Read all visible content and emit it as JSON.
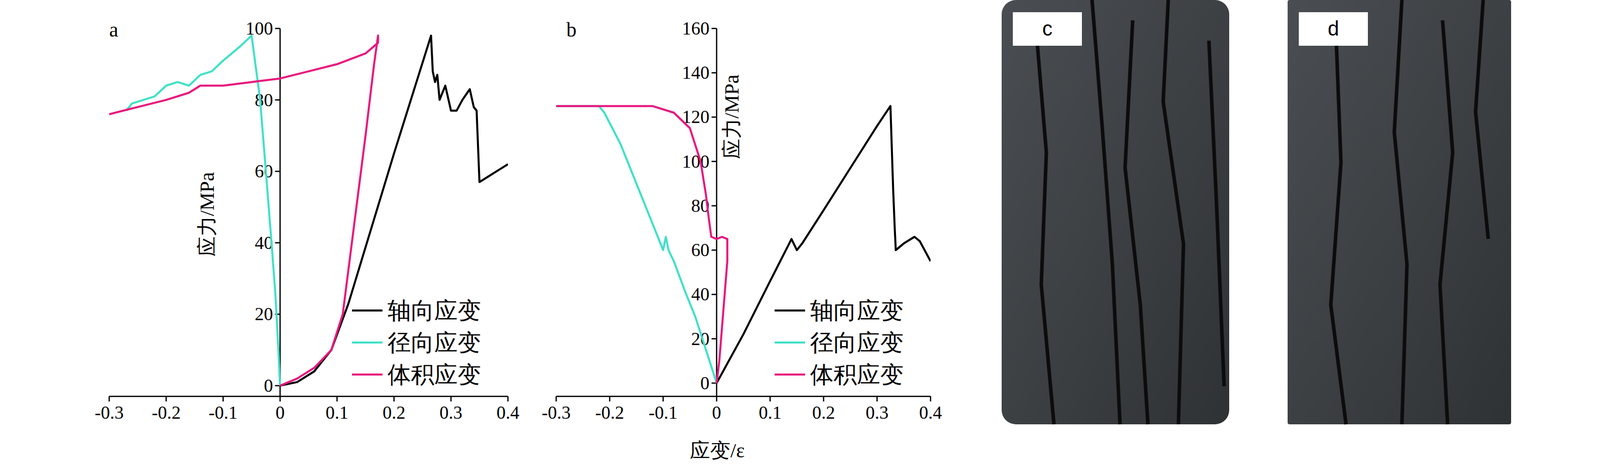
{
  "chart_data": [
    {
      "type": "line",
      "title": "a",
      "y_label": "应力/MPa",
      "xlim": [
        -0.3,
        0.4
      ],
      "xticks": [
        -0.3,
        -0.2,
        -0.1,
        0,
        0.1,
        0.2,
        0.3,
        0.4
      ],
      "ylim": [
        -3,
        100
      ],
      "yticks": [
        0,
        20,
        40,
        60,
        80,
        100
      ],
      "legend": "lower right",
      "series": [
        {
          "name": "轴向应变",
          "color": "#000000",
          "x": [
            0,
            0.03,
            0.06,
            0.09,
            0.12,
            0.2,
            0.265,
            0.268,
            0.272,
            0.276,
            0.28,
            0.29,
            0.3,
            0.31,
            0.32,
            0.333,
            0.34,
            0.345,
            0.35,
            0.36,
            0.38,
            0.4
          ],
          "values": [
            0,
            1,
            4,
            10,
            23,
            65,
            98,
            88,
            85,
            87,
            80,
            84,
            77,
            77,
            80,
            83,
            78,
            77,
            57,
            58,
            60,
            62
          ]
        },
        {
          "name": "径向应变",
          "color": "#40e0c8",
          "x": [
            0,
            -0.003,
            -0.008,
            -0.015,
            -0.025,
            -0.035,
            -0.05,
            -0.07,
            -0.1,
            -0.12,
            -0.14,
            -0.16,
            -0.18,
            -0.2,
            -0.22,
            -0.24,
            -0.26,
            -0.27
          ],
          "values": [
            0,
            10,
            25,
            40,
            60,
            80,
            98,
            95,
            91,
            88,
            87,
            84,
            85,
            84,
            81,
            80,
            79,
            77
          ]
        },
        {
          "name": "体积应变",
          "color": "#e8177d",
          "x": [
            0,
            0.03,
            0.06,
            0.09,
            0.11,
            0.13,
            0.15,
            0.165,
            0.172,
            0.172,
            0.15,
            0.1,
            0.05,
            0,
            -0.05,
            -0.1,
            -0.14,
            -0.16,
            -0.2,
            -0.25,
            -0.3
          ],
          "values": [
            0,
            2,
            5,
            10,
            20,
            45,
            70,
            90,
            98,
            96,
            93,
            90,
            88,
            86,
            85,
            84,
            84,
            82,
            80,
            78,
            76
          ]
        }
      ]
    },
    {
      "type": "line",
      "title": "b",
      "x_label": "应变/ε",
      "y_label": "应力/MPa",
      "xlim": [
        -0.3,
        0.4
      ],
      "xticks": [
        -0.3,
        -0.2,
        -0.1,
        0,
        0.1,
        0.2,
        0.3,
        0.4
      ],
      "ylim": [
        -6,
        160
      ],
      "yticks": [
        0,
        20,
        40,
        60,
        80,
        100,
        120,
        140,
        160
      ],
      "legend": "lower right",
      "series": [
        {
          "name": "轴向应变",
          "color": "#000000",
          "x": [
            0,
            0.05,
            0.1,
            0.14,
            0.15,
            0.16,
            0.2,
            0.25,
            0.3,
            0.325,
            0.33,
            0.333,
            0.335,
            0.35,
            0.37,
            0.38,
            0.4
          ],
          "values": [
            0,
            22,
            46,
            65,
            60,
            63,
            78,
            97,
            116,
            125,
            88,
            70,
            60,
            63,
            66,
            64,
            55
          ]
        },
        {
          "name": "径向应变",
          "color": "#40e0c8",
          "x": [
            0,
            -0.02,
            -0.04,
            -0.06,
            -0.08,
            -0.09,
            -0.095,
            -0.1,
            -0.12,
            -0.15,
            -0.18,
            -0.21,
            -0.22,
            -0.3
          ],
          "values": [
            0,
            15,
            30,
            42,
            55,
            60,
            66,
            60,
            72,
            90,
            108,
            122,
            125,
            125
          ]
        },
        {
          "name": "体积应变",
          "color": "#e8177d",
          "x": [
            0,
            0.005,
            0.01,
            0.015,
            0.02,
            0.02,
            0.01,
            0,
            -0.01,
            -0.015,
            -0.02,
            -0.03,
            -0.05,
            -0.08,
            -0.12,
            -0.2,
            -0.3
          ],
          "values": [
            0,
            10,
            25,
            40,
            55,
            65,
            66,
            65,
            66,
            75,
            85,
            100,
            115,
            122,
            125,
            125,
            125
          ]
        }
      ]
    }
  ],
  "photos": [
    {
      "label": "c"
    },
    {
      "label": "d"
    }
  ]
}
